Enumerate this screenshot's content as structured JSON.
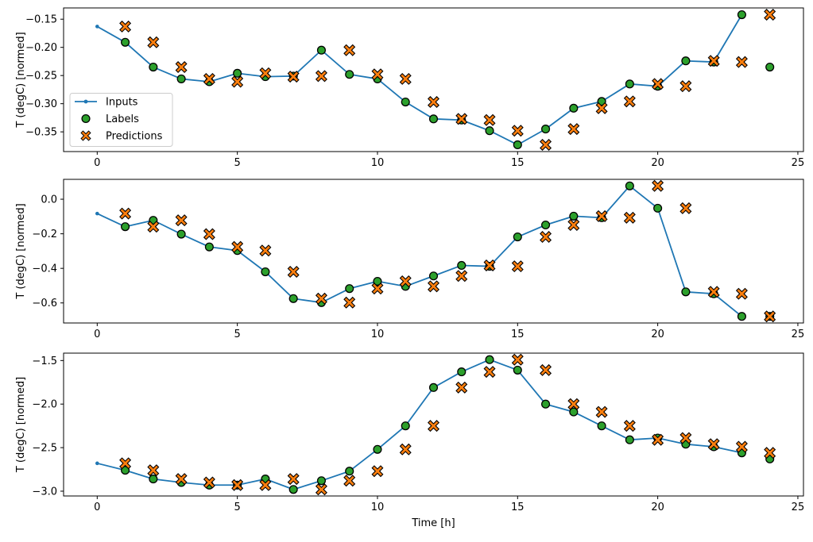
{
  "figure": {
    "xlabel": "Time [h]",
    "background": "#ffffff"
  },
  "style": {
    "colors": {
      "inputs": "#1f77b4",
      "labels": "#2ca02c",
      "predictions": "#ff7f0e",
      "marker_edge": "#000000",
      "spine": "#000000",
      "text": "#000000",
      "legend_border": "#cccccc",
      "legend_bg": "#ffffff"
    }
  },
  "legend": {
    "items": [
      {
        "label": "Inputs",
        "marker": "line-with-dot",
        "color": "#1f77b4"
      },
      {
        "label": "Labels",
        "marker": "filled-circle",
        "color": "#2ca02c"
      },
      {
        "label": "Predictions",
        "marker": "thick-x",
        "color": "#ff7f0e"
      }
    ]
  },
  "chart_data": [
    {
      "type": "line",
      "title": "",
      "ylabel": "T (degC) [normed]",
      "xlim": [
        -1.2,
        25.2
      ],
      "ylim": [
        -0.385,
        -0.13
      ],
      "xticks": [
        0,
        5,
        10,
        15,
        20,
        25
      ],
      "xtick_labels": [
        "0",
        "5",
        "10",
        "15",
        "20",
        "25"
      ],
      "yticks": [
        -0.15,
        -0.2,
        -0.25,
        -0.3,
        -0.35
      ],
      "ytick_labels": [
        "−0.15",
        "−0.20",
        "−0.25",
        "−0.30",
        "−0.35"
      ],
      "grid": false,
      "legend_visible": true,
      "series": [
        {
          "name": "Inputs",
          "style": "line-with-dot",
          "x": [
            0,
            1,
            2,
            3,
            4,
            5,
            6,
            7,
            8,
            9,
            10,
            11,
            12,
            13,
            14,
            15,
            16,
            17,
            18,
            19,
            20,
            21,
            22,
            23
          ],
          "y": [
            -0.163,
            -0.191,
            -0.235,
            -0.256,
            -0.261,
            -0.246,
            -0.252,
            -0.251,
            -0.205,
            -0.248,
            -0.256,
            -0.297,
            -0.327,
            -0.329,
            -0.348,
            -0.373,
            -0.345,
            -0.308,
            -0.296,
            -0.265,
            -0.269,
            -0.224,
            -0.226,
            -0.142
          ]
        },
        {
          "name": "Labels",
          "style": "scatter-circle",
          "x": [
            1,
            2,
            3,
            4,
            5,
            6,
            7,
            8,
            9,
            10,
            11,
            12,
            13,
            14,
            15,
            16,
            17,
            18,
            19,
            20,
            21,
            22,
            23,
            24
          ],
          "y": [
            -0.191,
            -0.235,
            -0.256,
            -0.261,
            -0.246,
            -0.252,
            -0.251,
            -0.205,
            -0.248,
            -0.256,
            -0.297,
            -0.327,
            -0.329,
            -0.348,
            -0.373,
            -0.345,
            -0.308,
            -0.296,
            -0.265,
            -0.269,
            -0.224,
            -0.226,
            -0.142,
            -0.235
          ]
        },
        {
          "name": "Predictions",
          "style": "scatter-x",
          "x": [
            1,
            2,
            3,
            4,
            5,
            6,
            7,
            8,
            9,
            10,
            11,
            12,
            13,
            14,
            15,
            16,
            17,
            18,
            19,
            20,
            21,
            22,
            23,
            24
          ],
          "y": [
            -0.163,
            -0.191,
            -0.235,
            -0.256,
            -0.261,
            -0.246,
            -0.252,
            -0.251,
            -0.205,
            -0.248,
            -0.256,
            -0.297,
            -0.327,
            -0.329,
            -0.348,
            -0.373,
            -0.345,
            -0.308,
            -0.296,
            -0.265,
            -0.269,
            -0.224,
            -0.226,
            -0.142
          ]
        }
      ]
    },
    {
      "type": "line",
      "title": "",
      "ylabel": "T (degC) [normed]",
      "xlim": [
        -1.2,
        25.2
      ],
      "ylim": [
        -0.716,
        0.115
      ],
      "xticks": [
        0,
        5,
        10,
        15,
        20,
        25
      ],
      "xtick_labels": [
        "0",
        "5",
        "10",
        "15",
        "20",
        "25"
      ],
      "yticks": [
        0.0,
        -0.2,
        -0.4,
        -0.6
      ],
      "ytick_labels": [
        "0.0",
        "−0.2",
        "−0.4",
        "−0.6"
      ],
      "grid": false,
      "legend_visible": false,
      "series": [
        {
          "name": "Inputs",
          "style": "line-with-dot",
          "x": [
            0,
            1,
            2,
            3,
            4,
            5,
            6,
            7,
            8,
            9,
            10,
            11,
            12,
            13,
            14,
            15,
            16,
            17,
            18,
            19,
            20,
            21,
            22,
            23
          ],
          "y": [
            -0.083,
            -0.159,
            -0.122,
            -0.202,
            -0.276,
            -0.297,
            -0.42,
            -0.575,
            -0.598,
            -0.517,
            -0.475,
            -0.504,
            -0.444,
            -0.383,
            -0.388,
            -0.218,
            -0.149,
            -0.098,
            -0.107,
            0.077,
            -0.052,
            -0.536,
            -0.547,
            -0.678
          ]
        },
        {
          "name": "Labels",
          "style": "scatter-circle",
          "x": [
            1,
            2,
            3,
            4,
            5,
            6,
            7,
            8,
            9,
            10,
            11,
            12,
            13,
            14,
            15,
            16,
            17,
            18,
            19,
            20,
            21,
            22,
            23,
            24
          ],
          "y": [
            -0.159,
            -0.122,
            -0.202,
            -0.276,
            -0.297,
            -0.42,
            -0.575,
            -0.598,
            -0.517,
            -0.475,
            -0.504,
            -0.444,
            -0.383,
            -0.388,
            -0.218,
            -0.149,
            -0.098,
            -0.107,
            0.077,
            -0.052,
            -0.536,
            -0.547,
            -0.678,
            -0.678
          ]
        },
        {
          "name": "Predictions",
          "style": "scatter-x",
          "x": [
            1,
            2,
            3,
            4,
            5,
            6,
            7,
            8,
            9,
            10,
            11,
            12,
            13,
            14,
            15,
            16,
            17,
            18,
            19,
            20,
            21,
            22,
            23,
            24
          ],
          "y": [
            -0.083,
            -0.159,
            -0.122,
            -0.202,
            -0.276,
            -0.297,
            -0.42,
            -0.575,
            -0.598,
            -0.517,
            -0.475,
            -0.504,
            -0.444,
            -0.383,
            -0.388,
            -0.218,
            -0.149,
            -0.098,
            -0.107,
            0.077,
            -0.052,
            -0.536,
            -0.547,
            -0.678
          ]
        }
      ]
    },
    {
      "type": "line",
      "title": "",
      "ylabel": "T (degC) [normed]",
      "xlim": [
        -1.2,
        25.2
      ],
      "ylim": [
        -3.055,
        -1.415
      ],
      "xticks": [
        0,
        5,
        10,
        15,
        20,
        25
      ],
      "xtick_labels": [
        "0",
        "5",
        "10",
        "15",
        "20",
        "25"
      ],
      "yticks": [
        -1.5,
        -2.0,
        -2.5,
        -3.0
      ],
      "ytick_labels": [
        "−1.5",
        "−2.0",
        "−2.5",
        "−3.0"
      ],
      "grid": false,
      "legend_visible": false,
      "series": [
        {
          "name": "Inputs",
          "style": "line-with-dot",
          "x": [
            0,
            1,
            2,
            3,
            4,
            5,
            6,
            7,
            8,
            9,
            10,
            11,
            12,
            13,
            14,
            15,
            16,
            17,
            18,
            19,
            20,
            21,
            22,
            23
          ],
          "y": [
            -2.68,
            -2.76,
            -2.86,
            -2.9,
            -2.93,
            -2.93,
            -2.86,
            -2.98,
            -2.88,
            -2.77,
            -2.52,
            -2.25,
            -1.81,
            -1.63,
            -1.49,
            -1.61,
            -2.0,
            -2.09,
            -2.25,
            -2.41,
            -2.39,
            -2.46,
            -2.49,
            -2.56
          ]
        },
        {
          "name": "Labels",
          "style": "scatter-circle",
          "x": [
            1,
            2,
            3,
            4,
            5,
            6,
            7,
            8,
            9,
            10,
            11,
            12,
            13,
            14,
            15,
            16,
            17,
            18,
            19,
            20,
            21,
            22,
            23,
            24
          ],
          "y": [
            -2.76,
            -2.86,
            -2.9,
            -2.93,
            -2.93,
            -2.86,
            -2.98,
            -2.88,
            -2.77,
            -2.52,
            -2.25,
            -1.81,
            -1.63,
            -1.49,
            -1.61,
            -2.0,
            -2.09,
            -2.25,
            -2.41,
            -2.39,
            -2.46,
            -2.49,
            -2.56,
            -2.63
          ]
        },
        {
          "name": "Predictions",
          "style": "scatter-x",
          "x": [
            1,
            2,
            3,
            4,
            5,
            6,
            7,
            8,
            9,
            10,
            11,
            12,
            13,
            14,
            15,
            16,
            17,
            18,
            19,
            20,
            21,
            22,
            23,
            24
          ],
          "y": [
            -2.68,
            -2.76,
            -2.86,
            -2.9,
            -2.93,
            -2.93,
            -2.86,
            -2.98,
            -2.88,
            -2.77,
            -2.52,
            -2.25,
            -1.81,
            -1.63,
            -1.49,
            -1.61,
            -2.0,
            -2.09,
            -2.25,
            -2.41,
            -2.39,
            -2.46,
            -2.49,
            -2.56
          ]
        }
      ]
    }
  ]
}
